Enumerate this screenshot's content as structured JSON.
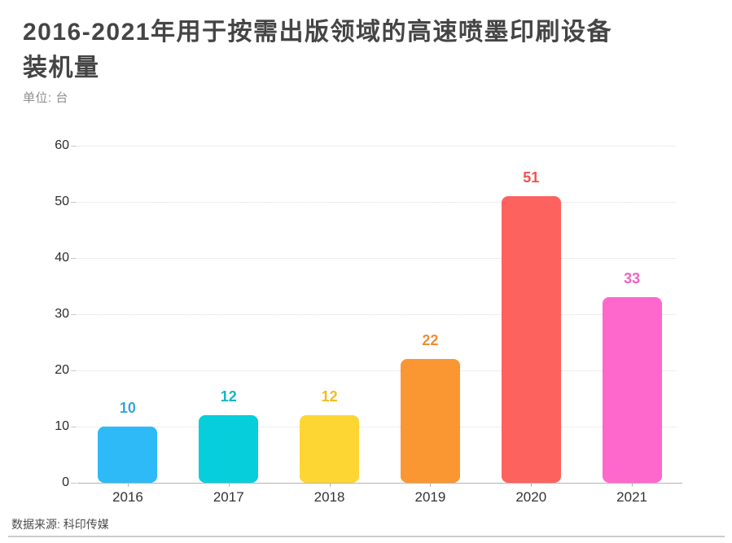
{
  "header": {
    "title": "2016-2021年用于按需出版领域的高速喷墨印刷设备装机量",
    "title_line1": "2016-2021年用于按需出版领域的高速喷墨印刷设备",
    "title_line2": "装机量",
    "unit_label": "单位: 台"
  },
  "footer": {
    "source_label": "数据来源: 科印传媒"
  },
  "chart_data": {
    "type": "bar",
    "title": "2016-2021年用于按需出版领域的高速喷墨印刷设备装机量",
    "unit": "台",
    "categories": [
      "2016",
      "2017",
      "2018",
      "2019",
      "2020",
      "2021"
    ],
    "values": [
      10,
      12,
      12,
      22,
      51,
      33
    ],
    "bar_colors": [
      "#2EB9F7",
      "#07CEDB",
      "#FED633",
      "#FA9732",
      "#FE625F",
      "#FE68CD"
    ],
    "value_label_colors": [
      "#3BA4D6",
      "#12B7C3",
      "#F2BD20",
      "#EE8F31",
      "#EE5351",
      "#F060C4"
    ],
    "xlabel": "",
    "ylabel": "台",
    "ylim": [
      0,
      60
    ],
    "yticks": [
      0,
      10,
      20,
      30,
      40,
      50,
      60
    ],
    "grid": "horizontal-dotted",
    "legend": "none",
    "source": "数据来源: 科印传媒"
  }
}
